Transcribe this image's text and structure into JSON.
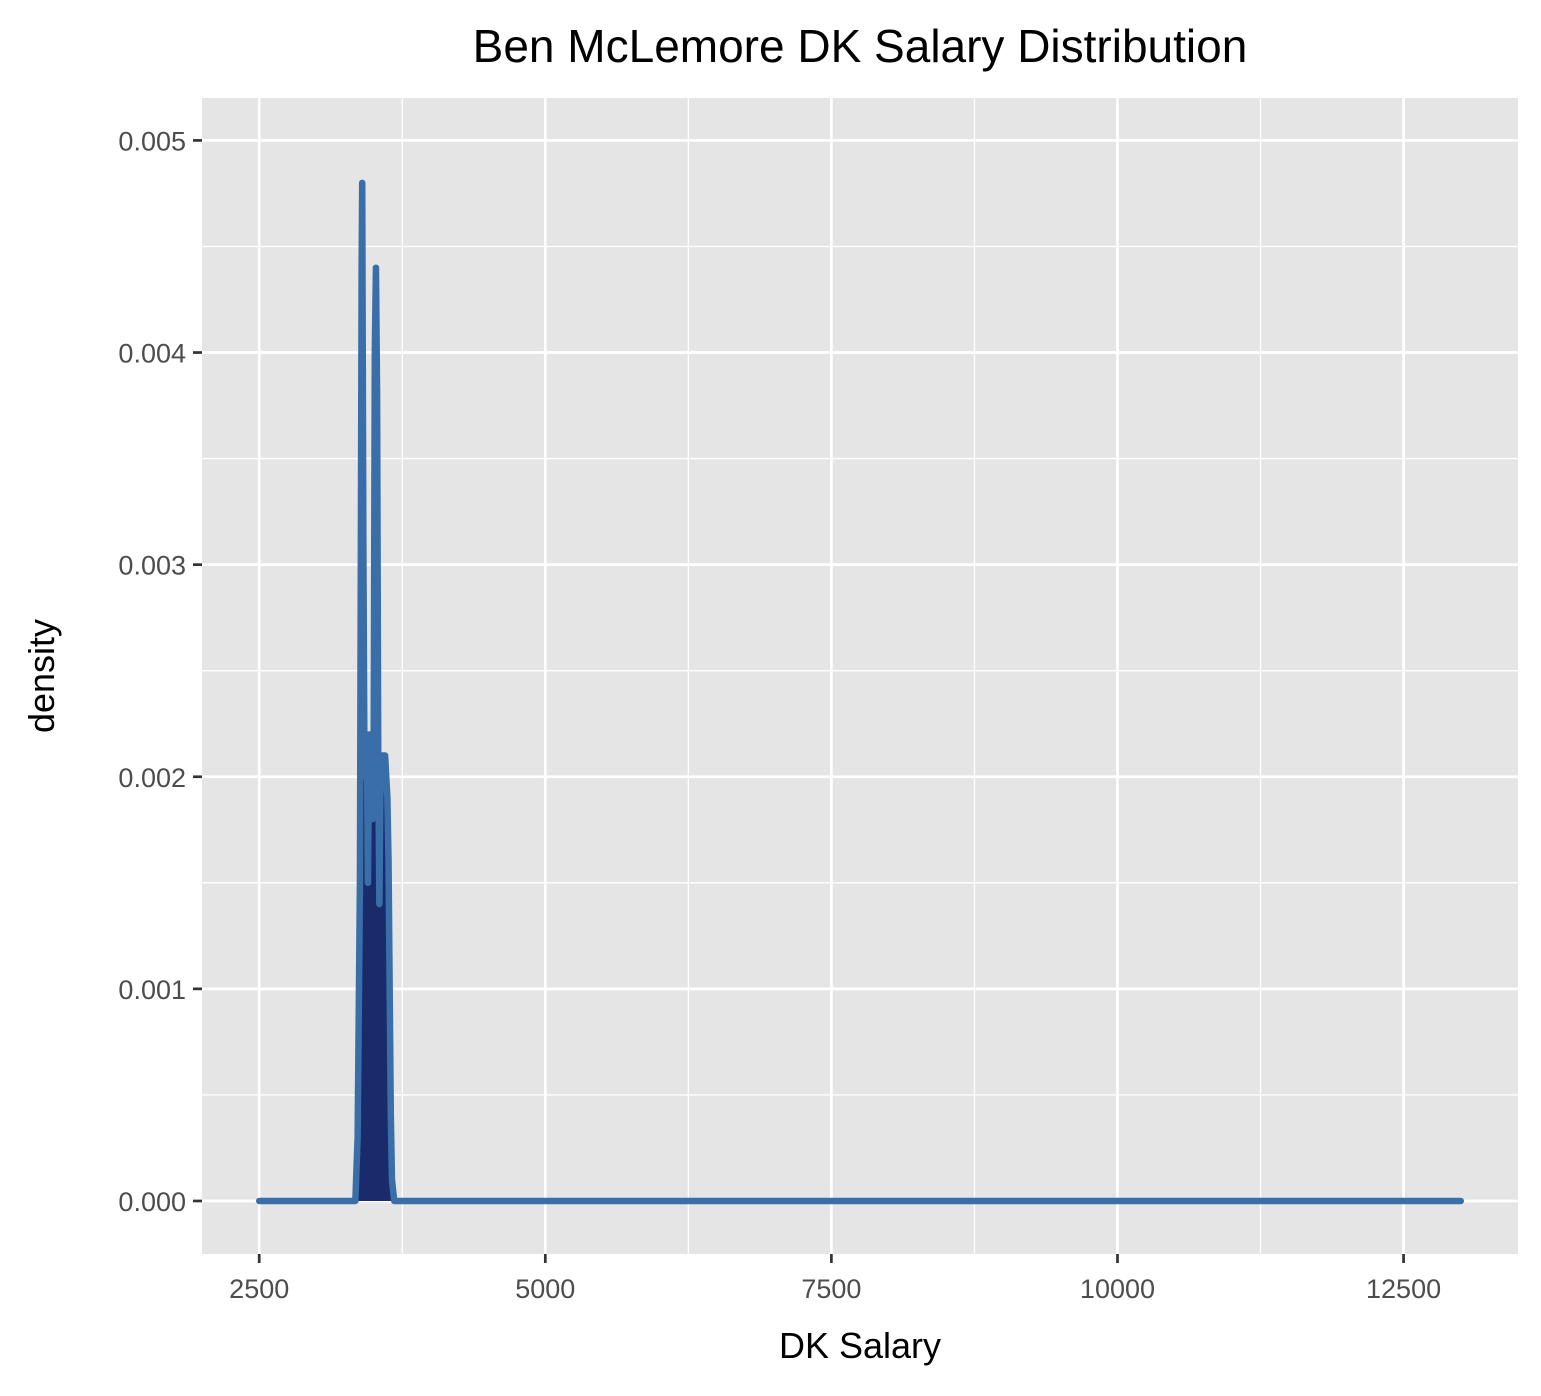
{
  "chart_data": {
    "type": "line",
    "title": "Ben McLemore DK Salary Distribution",
    "xlabel": "DK Salary",
    "ylabel": "density",
    "xlim": [
      2000,
      13500
    ],
    "ylim": [
      -0.00025,
      0.0052
    ],
    "x_ticks": [
      2500,
      5000,
      7500,
      10000,
      12500
    ],
    "x_tick_labels": [
      "2500",
      "5000",
      "7500",
      "10000",
      "12500"
    ],
    "y_ticks": [
      0,
      0.001,
      0.002,
      0.003,
      0.004,
      0.005
    ],
    "y_tick_labels": [
      "0.000",
      "0.001",
      "0.002",
      "0.003",
      "0.004",
      "0.005"
    ],
    "grid": true,
    "legend": "none",
    "colors": {
      "panel_background": "#e5e5e5",
      "grid_line": "#ffffff",
      "fill": "#1a2b6b",
      "line": "#3a6ea8"
    },
    "series": [
      {
        "x": [
          2500,
          3340,
          3360,
          3380,
          3395,
          3400,
          3410,
          3420,
          3430,
          3440,
          3450,
          3460,
          3470,
          3480,
          3490,
          3500,
          3510,
          3520,
          3530,
          3540,
          3550,
          3560,
          3570,
          3580,
          3590,
          3600,
          3610,
          3620,
          3630,
          3640,
          3650,
          3660,
          3680,
          3700,
          13000
        ],
        "y": [
          0,
          0,
          0.0003,
          0.0015,
          0.0044,
          0.0048,
          0.0031,
          0.002,
          0.0021,
          0.0022,
          0.0015,
          0.0021,
          0.0022,
          0.002,
          0.0018,
          0.0021,
          0.004,
          0.0044,
          0.0038,
          0.0021,
          0.0014,
          0.002,
          0.0021,
          0.0021,
          0.0021,
          0.0021,
          0.002,
          0.0019,
          0.0016,
          0.001,
          0.0004,
          0.0001,
          0,
          0,
          0
        ]
      }
    ]
  }
}
